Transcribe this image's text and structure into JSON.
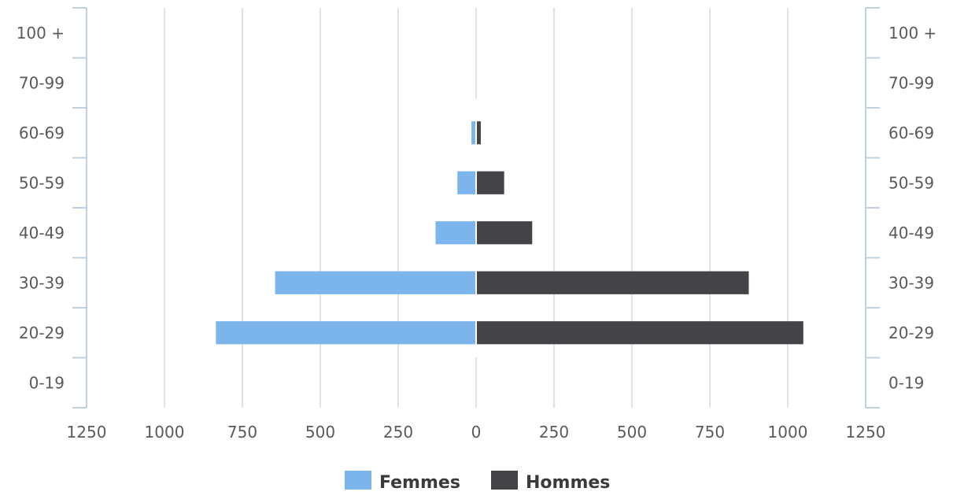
{
  "chart_data": {
    "type": "bar",
    "orientation": "horizontal",
    "layout": "population-pyramid",
    "categories": [
      "100 +",
      "70-99",
      "60-69",
      "50-59",
      "40-49",
      "30-39",
      "20-29",
      "0-19"
    ],
    "series": [
      {
        "name": "Femmes",
        "side": "left",
        "color": "#7cb5ec",
        "values": [
          0,
          0,
          15,
          60,
          130,
          645,
          835,
          0
        ]
      },
      {
        "name": "Hommes",
        "side": "right",
        "color": "#434348",
        "values": [
          0,
          0,
          15,
          90,
          180,
          875,
          1050,
          0
        ]
      }
    ],
    "x_ticks": [
      "1250",
      "1000",
      "750",
      "500",
      "250",
      "0",
      "250",
      "500",
      "750",
      "1000",
      "1250"
    ],
    "xlim": [
      -1250,
      1250
    ],
    "title": "",
    "xlabel": "",
    "ylabel": "",
    "grid": true,
    "legend": {
      "position": "bottom-center",
      "items": [
        {
          "label": "Femmes",
          "color": "#7cb5ec"
        },
        {
          "label": "Hommes",
          "color": "#434348"
        }
      ]
    }
  }
}
